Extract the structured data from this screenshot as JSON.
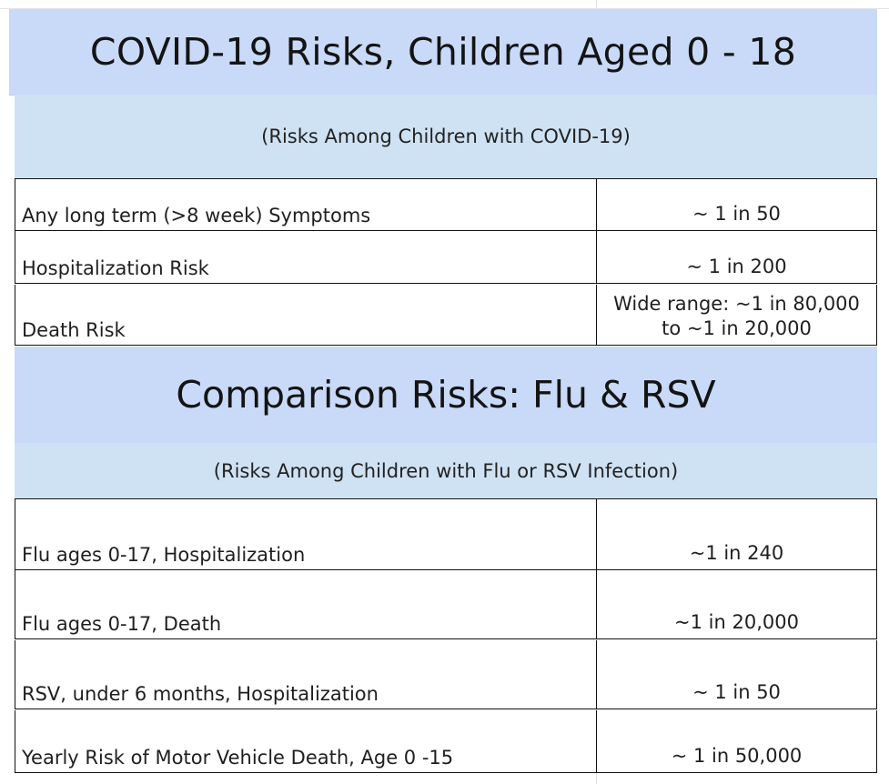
{
  "covid": {
    "title": "COVID-19 Risks, Children Aged 0 - 18",
    "subtitle": "(Risks Among Children with COVID-19)",
    "rows": [
      {
        "label": "Any long term (>8 week) Symptoms",
        "value": "~ 1 in 50"
      },
      {
        "label": "Hospitalization Risk",
        "value": "~ 1 in 200"
      },
      {
        "label": "Death Risk",
        "value": "Wide range: ~1 in 80,000\nto ~1 in 20,000"
      }
    ]
  },
  "comparison": {
    "title": "Comparison Risks: Flu & RSV",
    "subtitle": "(Risks Among Children with Flu or RSV Infection)",
    "rows": [
      {
        "label": "Flu ages 0-17, Hospitalization",
        "value": "~1 in 240"
      },
      {
        "label": "Flu ages 0-17, Death",
        "value": "~1 in 20,000"
      },
      {
        "label": "RSV, under 6 months, Hospitalization",
        "value": "~ 1 in 50"
      },
      {
        "label": "Yearly Risk of Motor Vehicle Death, Age 0 -15",
        "value": "~ 1 in 50,000"
      }
    ]
  }
}
